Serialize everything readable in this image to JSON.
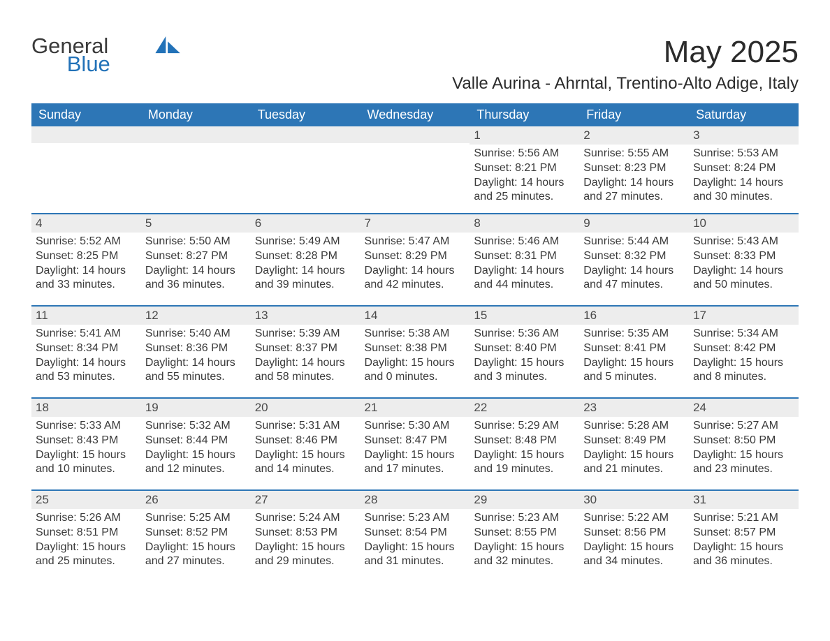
{
  "logo": {
    "word1": "General",
    "word2": "Blue",
    "sail_color": "#2272b8"
  },
  "title": "May 2025",
  "subtitle": "Valle Aurina - Ahrntal, Trentino-Alto Adige, Italy",
  "colors": {
    "header_bg": "#2d76b6",
    "header_text": "#ffffff",
    "daynum_bg": "#ededed",
    "row_divider": "#2d76b6",
    "body_text": "#3a3a3a",
    "page_bg": "#ffffff"
  },
  "typography": {
    "title_fontsize": 44,
    "subtitle_fontsize": 24,
    "header_fontsize": 18,
    "daynum_fontsize": 17,
    "body_fontsize": 16,
    "font_family": "Segoe UI"
  },
  "weekday_headers": [
    "Sunday",
    "Monday",
    "Tuesday",
    "Wednesday",
    "Thursday",
    "Friday",
    "Saturday"
  ],
  "weeks": [
    [
      null,
      null,
      null,
      null,
      {
        "day": "1",
        "sunrise": "Sunrise: 5:56 AM",
        "sunset": "Sunset: 8:21 PM",
        "daylight1": "Daylight: 14 hours",
        "daylight2": "and 25 minutes."
      },
      {
        "day": "2",
        "sunrise": "Sunrise: 5:55 AM",
        "sunset": "Sunset: 8:23 PM",
        "daylight1": "Daylight: 14 hours",
        "daylight2": "and 27 minutes."
      },
      {
        "day": "3",
        "sunrise": "Sunrise: 5:53 AM",
        "sunset": "Sunset: 8:24 PM",
        "daylight1": "Daylight: 14 hours",
        "daylight2": "and 30 minutes."
      }
    ],
    [
      {
        "day": "4",
        "sunrise": "Sunrise: 5:52 AM",
        "sunset": "Sunset: 8:25 PM",
        "daylight1": "Daylight: 14 hours",
        "daylight2": "and 33 minutes."
      },
      {
        "day": "5",
        "sunrise": "Sunrise: 5:50 AM",
        "sunset": "Sunset: 8:27 PM",
        "daylight1": "Daylight: 14 hours",
        "daylight2": "and 36 minutes."
      },
      {
        "day": "6",
        "sunrise": "Sunrise: 5:49 AM",
        "sunset": "Sunset: 8:28 PM",
        "daylight1": "Daylight: 14 hours",
        "daylight2": "and 39 minutes."
      },
      {
        "day": "7",
        "sunrise": "Sunrise: 5:47 AM",
        "sunset": "Sunset: 8:29 PM",
        "daylight1": "Daylight: 14 hours",
        "daylight2": "and 42 minutes."
      },
      {
        "day": "8",
        "sunrise": "Sunrise: 5:46 AM",
        "sunset": "Sunset: 8:31 PM",
        "daylight1": "Daylight: 14 hours",
        "daylight2": "and 44 minutes."
      },
      {
        "day": "9",
        "sunrise": "Sunrise: 5:44 AM",
        "sunset": "Sunset: 8:32 PM",
        "daylight1": "Daylight: 14 hours",
        "daylight2": "and 47 minutes."
      },
      {
        "day": "10",
        "sunrise": "Sunrise: 5:43 AM",
        "sunset": "Sunset: 8:33 PM",
        "daylight1": "Daylight: 14 hours",
        "daylight2": "and 50 minutes."
      }
    ],
    [
      {
        "day": "11",
        "sunrise": "Sunrise: 5:41 AM",
        "sunset": "Sunset: 8:34 PM",
        "daylight1": "Daylight: 14 hours",
        "daylight2": "and 53 minutes."
      },
      {
        "day": "12",
        "sunrise": "Sunrise: 5:40 AM",
        "sunset": "Sunset: 8:36 PM",
        "daylight1": "Daylight: 14 hours",
        "daylight2": "and 55 minutes."
      },
      {
        "day": "13",
        "sunrise": "Sunrise: 5:39 AM",
        "sunset": "Sunset: 8:37 PM",
        "daylight1": "Daylight: 14 hours",
        "daylight2": "and 58 minutes."
      },
      {
        "day": "14",
        "sunrise": "Sunrise: 5:38 AM",
        "sunset": "Sunset: 8:38 PM",
        "daylight1": "Daylight: 15 hours",
        "daylight2": "and 0 minutes."
      },
      {
        "day": "15",
        "sunrise": "Sunrise: 5:36 AM",
        "sunset": "Sunset: 8:40 PM",
        "daylight1": "Daylight: 15 hours",
        "daylight2": "and 3 minutes."
      },
      {
        "day": "16",
        "sunrise": "Sunrise: 5:35 AM",
        "sunset": "Sunset: 8:41 PM",
        "daylight1": "Daylight: 15 hours",
        "daylight2": "and 5 minutes."
      },
      {
        "day": "17",
        "sunrise": "Sunrise: 5:34 AM",
        "sunset": "Sunset: 8:42 PM",
        "daylight1": "Daylight: 15 hours",
        "daylight2": "and 8 minutes."
      }
    ],
    [
      {
        "day": "18",
        "sunrise": "Sunrise: 5:33 AM",
        "sunset": "Sunset: 8:43 PM",
        "daylight1": "Daylight: 15 hours",
        "daylight2": "and 10 minutes."
      },
      {
        "day": "19",
        "sunrise": "Sunrise: 5:32 AM",
        "sunset": "Sunset: 8:44 PM",
        "daylight1": "Daylight: 15 hours",
        "daylight2": "and 12 minutes."
      },
      {
        "day": "20",
        "sunrise": "Sunrise: 5:31 AM",
        "sunset": "Sunset: 8:46 PM",
        "daylight1": "Daylight: 15 hours",
        "daylight2": "and 14 minutes."
      },
      {
        "day": "21",
        "sunrise": "Sunrise: 5:30 AM",
        "sunset": "Sunset: 8:47 PM",
        "daylight1": "Daylight: 15 hours",
        "daylight2": "and 17 minutes."
      },
      {
        "day": "22",
        "sunrise": "Sunrise: 5:29 AM",
        "sunset": "Sunset: 8:48 PM",
        "daylight1": "Daylight: 15 hours",
        "daylight2": "and 19 minutes."
      },
      {
        "day": "23",
        "sunrise": "Sunrise: 5:28 AM",
        "sunset": "Sunset: 8:49 PM",
        "daylight1": "Daylight: 15 hours",
        "daylight2": "and 21 minutes."
      },
      {
        "day": "24",
        "sunrise": "Sunrise: 5:27 AM",
        "sunset": "Sunset: 8:50 PM",
        "daylight1": "Daylight: 15 hours",
        "daylight2": "and 23 minutes."
      }
    ],
    [
      {
        "day": "25",
        "sunrise": "Sunrise: 5:26 AM",
        "sunset": "Sunset: 8:51 PM",
        "daylight1": "Daylight: 15 hours",
        "daylight2": "and 25 minutes."
      },
      {
        "day": "26",
        "sunrise": "Sunrise: 5:25 AM",
        "sunset": "Sunset: 8:52 PM",
        "daylight1": "Daylight: 15 hours",
        "daylight2": "and 27 minutes."
      },
      {
        "day": "27",
        "sunrise": "Sunrise: 5:24 AM",
        "sunset": "Sunset: 8:53 PM",
        "daylight1": "Daylight: 15 hours",
        "daylight2": "and 29 minutes."
      },
      {
        "day": "28",
        "sunrise": "Sunrise: 5:23 AM",
        "sunset": "Sunset: 8:54 PM",
        "daylight1": "Daylight: 15 hours",
        "daylight2": "and 31 minutes."
      },
      {
        "day": "29",
        "sunrise": "Sunrise: 5:23 AM",
        "sunset": "Sunset: 8:55 PM",
        "daylight1": "Daylight: 15 hours",
        "daylight2": "and 32 minutes."
      },
      {
        "day": "30",
        "sunrise": "Sunrise: 5:22 AM",
        "sunset": "Sunset: 8:56 PM",
        "daylight1": "Daylight: 15 hours",
        "daylight2": "and 34 minutes."
      },
      {
        "day": "31",
        "sunrise": "Sunrise: 5:21 AM",
        "sunset": "Sunset: 8:57 PM",
        "daylight1": "Daylight: 15 hours",
        "daylight2": "and 36 minutes."
      }
    ]
  ]
}
